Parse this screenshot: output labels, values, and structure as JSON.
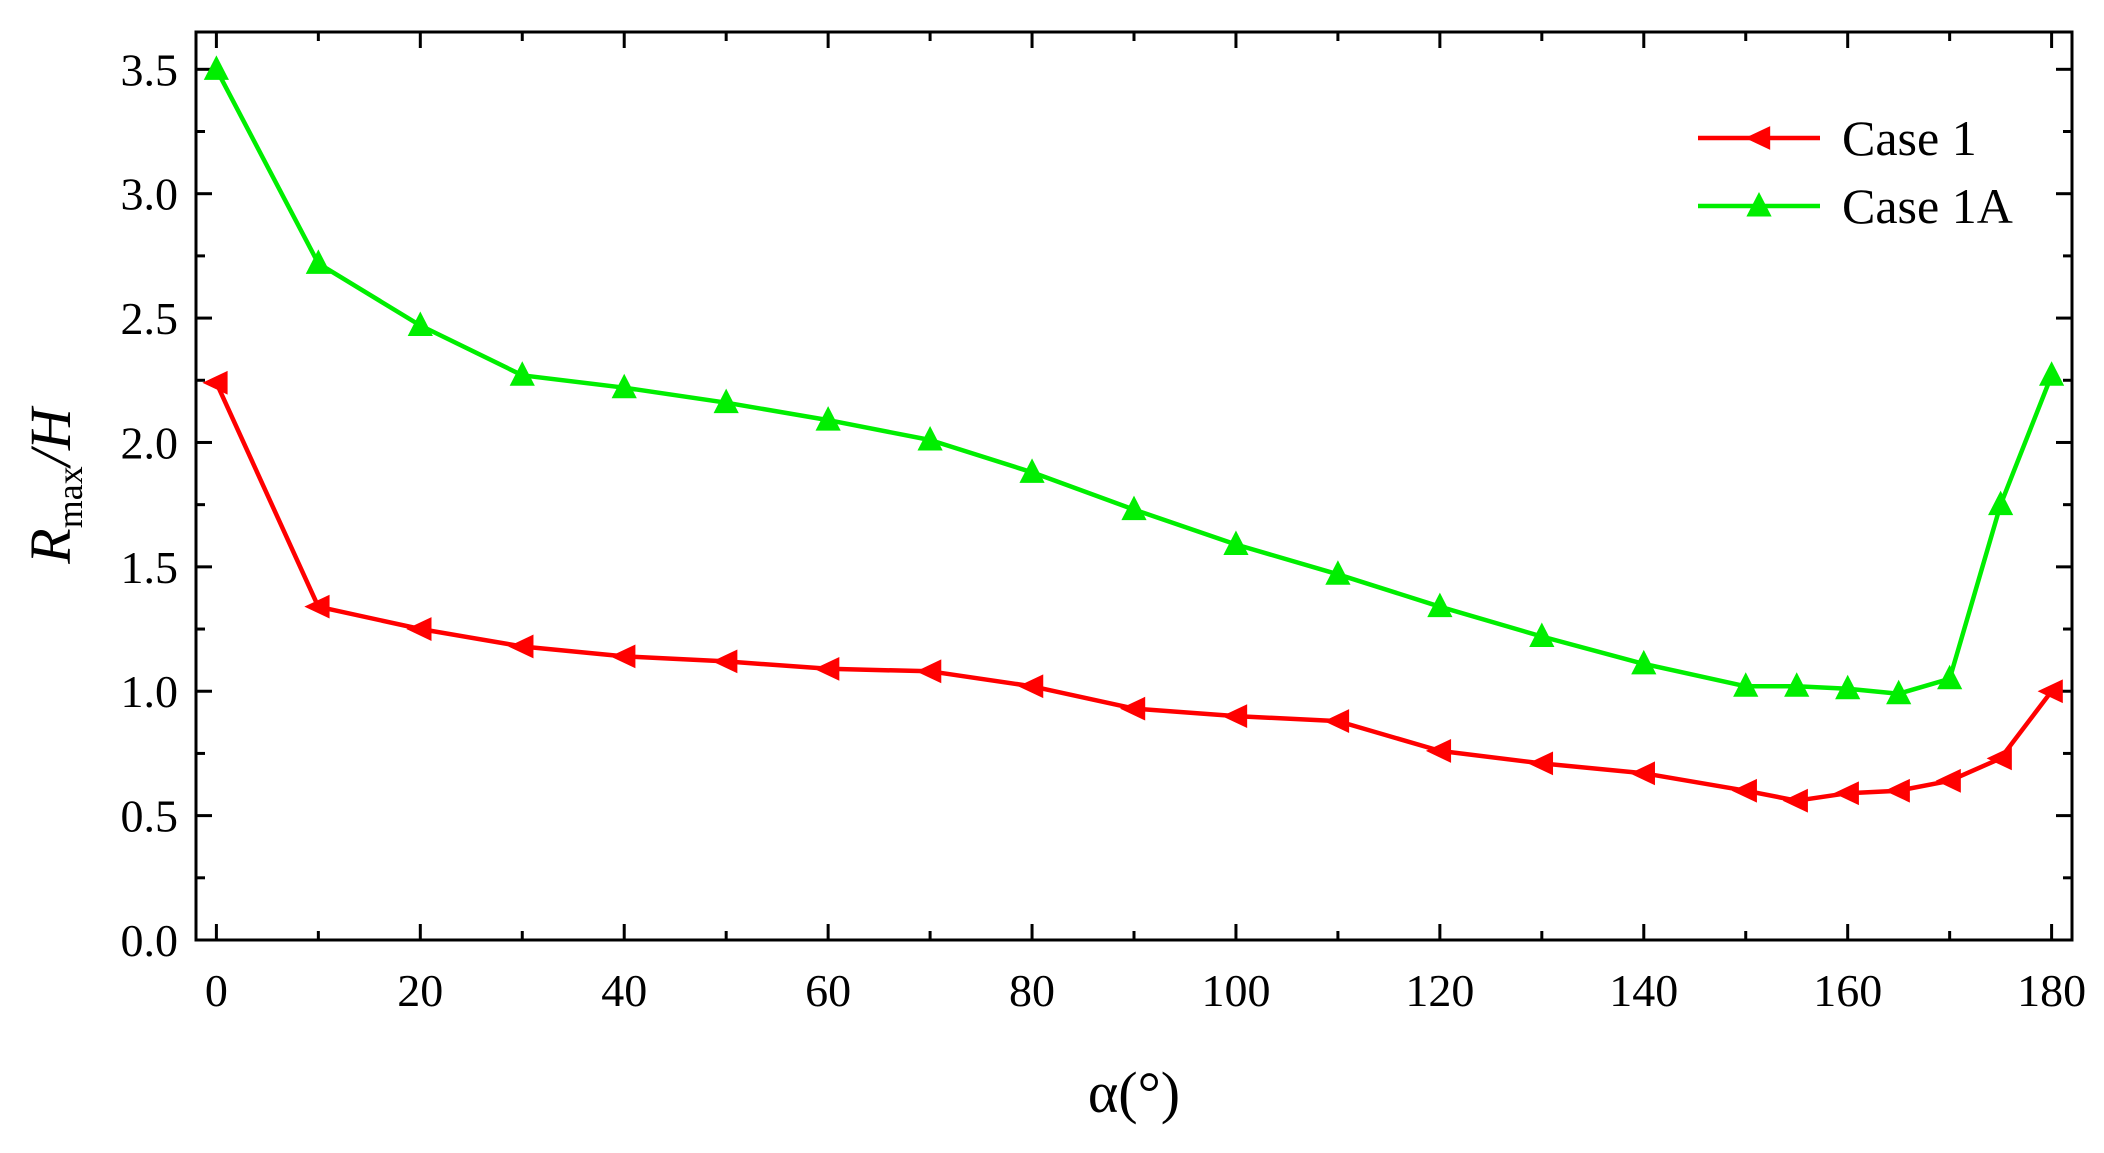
{
  "chart_data": {
    "type": "line",
    "title": "",
    "xlabel": "α(°)",
    "ylabel": {
      "main": "R",
      "sub": "max",
      "rest": "/H"
    },
    "xlim": [
      -2,
      182
    ],
    "ylim": [
      0,
      3.65
    ],
    "x_ticks": [
      0,
      20,
      40,
      60,
      80,
      100,
      120,
      140,
      160,
      180
    ],
    "x_tick_labels": [
      "0",
      "20",
      "40",
      "60",
      "80",
      "100",
      "120",
      "140",
      "160",
      "180"
    ],
    "y_ticks": [
      0,
      0.5,
      1.0,
      1.5,
      2.0,
      2.5,
      3.0,
      3.5
    ],
    "y_tick_labels": [
      "0.0",
      "0.5",
      "1.0",
      "1.5",
      "2.0",
      "2.5",
      "3.0",
      "3.5"
    ],
    "grid": false,
    "legend_position": "top-right",
    "series": [
      {
        "name": "Case 1",
        "color": "#ff0000",
        "marker": "triangle-left",
        "x": [
          0,
          10,
          20,
          30,
          40,
          50,
          60,
          70,
          80,
          90,
          100,
          110,
          120,
          130,
          140,
          150,
          155,
          160,
          165,
          170,
          175,
          180
        ],
        "y": [
          2.24,
          1.34,
          1.25,
          1.18,
          1.14,
          1.12,
          1.09,
          1.08,
          1.02,
          0.93,
          0.9,
          0.88,
          0.76,
          0.71,
          0.67,
          0.6,
          0.56,
          0.59,
          0.6,
          0.64,
          0.73,
          1.0
        ]
      },
      {
        "name": "Case 1A",
        "color": "#00ee00",
        "marker": "triangle-up",
        "x": [
          0,
          10,
          20,
          30,
          40,
          50,
          60,
          70,
          80,
          90,
          100,
          110,
          120,
          130,
          140,
          150,
          155,
          160,
          165,
          170,
          175,
          180
        ],
        "y": [
          3.5,
          2.72,
          2.47,
          2.27,
          2.22,
          2.16,
          2.09,
          2.01,
          1.88,
          1.73,
          1.59,
          1.47,
          1.34,
          1.22,
          1.11,
          1.02,
          1.02,
          1.01,
          0.99,
          1.05,
          1.75,
          2.27
        ]
      }
    ]
  }
}
